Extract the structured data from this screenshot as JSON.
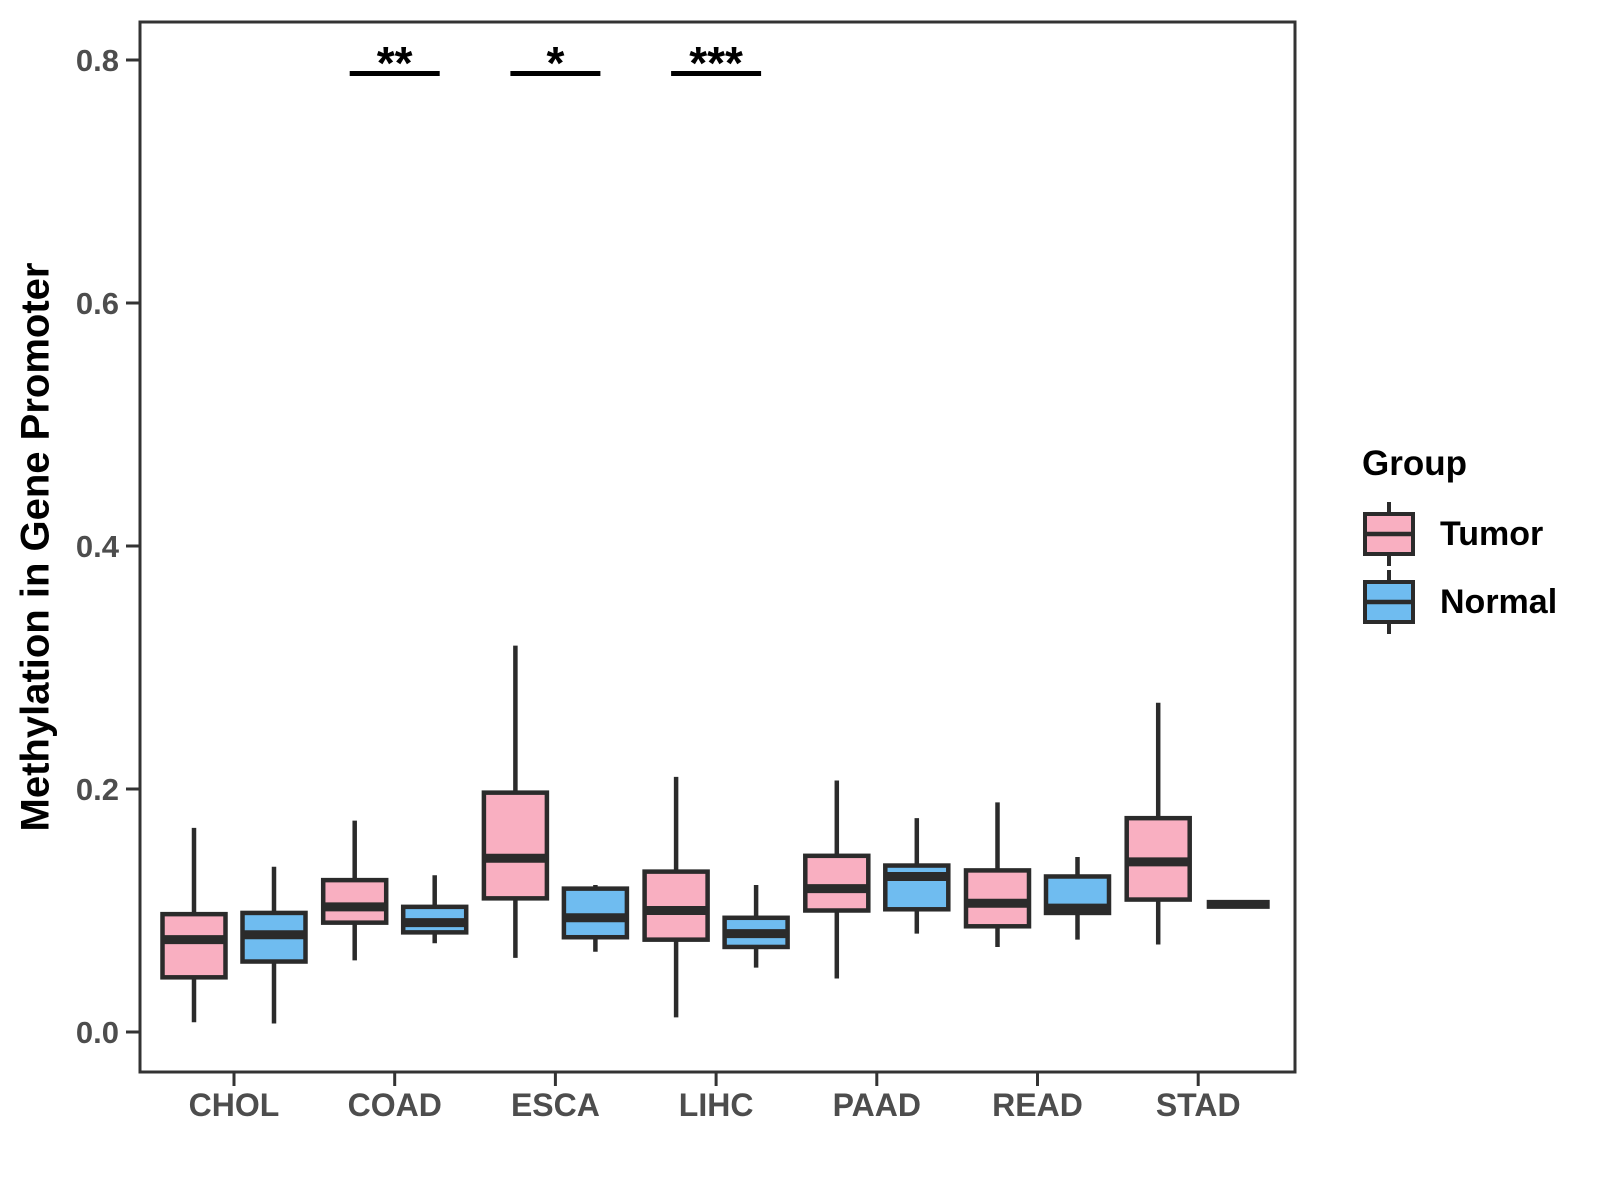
{
  "figure": {
    "y_axis_title": "Methylation in Gene Promoter"
  },
  "legend": {
    "title": "Group",
    "entries": [
      {
        "label": "Tumor",
        "color": "#F9AFC1"
      },
      {
        "label": "Normal",
        "color": "#6FBCF0"
      }
    ]
  },
  "chart_data": {
    "type": "boxplot",
    "title": "",
    "xlabel": "",
    "ylabel": "Methylation in Gene Promoter",
    "legend_title": "Group",
    "legend_position": "right",
    "grid": false,
    "ylim": [
      -0.033,
      0.831
    ],
    "y_ticks": [
      {
        "value": 0.0,
        "label": "0.0"
      },
      {
        "value": 0.2,
        "label": "0.2"
      },
      {
        "value": 0.4,
        "label": "0.4"
      },
      {
        "value": 0.6,
        "label": "0.6"
      },
      {
        "value": 0.8,
        "label": "0.8"
      }
    ],
    "categories": [
      "CHOL",
      "COAD",
      "ESCA",
      "LIHC",
      "PAAD",
      "READ",
      "STAD"
    ],
    "colors": {
      "tumor_fill": "#F9AFC1",
      "normal_fill": "#6FBCF0",
      "stroke": "#2B2B2B",
      "axis": "#333333",
      "tick_label": "#4D4D4D",
      "significance": "#000000"
    },
    "series": [
      {
        "name": "Tumor",
        "color": "#F9AFC1",
        "boxes": [
          {
            "category": "CHOL",
            "whisker_low": 0.008,
            "q1": 0.045,
            "median": 0.076,
            "q3": 0.097,
            "whisker_high": 0.168
          },
          {
            "category": "COAD",
            "whisker_low": 0.059,
            "q1": 0.09,
            "median": 0.103,
            "q3": 0.125,
            "whisker_high": 0.174
          },
          {
            "category": "ESCA",
            "whisker_low": 0.061,
            "q1": 0.11,
            "median": 0.143,
            "q3": 0.197,
            "whisker_high": 0.318
          },
          {
            "category": "LIHC",
            "whisker_low": 0.012,
            "q1": 0.076,
            "median": 0.1,
            "q3": 0.132,
            "whisker_high": 0.21
          },
          {
            "category": "PAAD",
            "whisker_low": 0.044,
            "q1": 0.1,
            "median": 0.118,
            "q3": 0.145,
            "whisker_high": 0.207
          },
          {
            "category": "READ",
            "whisker_low": 0.07,
            "q1": 0.087,
            "median": 0.106,
            "q3": 0.133,
            "whisker_high": 0.189
          },
          {
            "category": "STAD",
            "whisker_low": 0.072,
            "q1": 0.109,
            "median": 0.14,
            "q3": 0.176,
            "whisker_high": 0.271
          }
        ]
      },
      {
        "name": "Normal",
        "color": "#6FBCF0",
        "boxes": [
          {
            "category": "CHOL",
            "whisker_low": 0.007,
            "q1": 0.058,
            "median": 0.08,
            "q3": 0.098,
            "whisker_high": 0.136
          },
          {
            "category": "COAD",
            "whisker_low": 0.073,
            "q1": 0.082,
            "median": 0.09,
            "q3": 0.103,
            "whisker_high": 0.129
          },
          {
            "category": "ESCA",
            "whisker_low": 0.066,
            "q1": 0.078,
            "median": 0.094,
            "q3": 0.118,
            "whisker_high": 0.121
          },
          {
            "category": "LIHC",
            "whisker_low": 0.053,
            "q1": 0.07,
            "median": 0.081,
            "q3": 0.094,
            "whisker_high": 0.121
          },
          {
            "category": "PAAD",
            "whisker_low": 0.081,
            "q1": 0.101,
            "median": 0.128,
            "q3": 0.137,
            "whisker_high": 0.176
          },
          {
            "category": "READ",
            "whisker_low": 0.076,
            "q1": 0.098,
            "median": 0.102,
            "q3": 0.128,
            "whisker_high": 0.144
          },
          {
            "category": "STAD",
            "whisker_low": 0.105,
            "q1": 0.105,
            "median": 0.105,
            "q3": 0.105,
            "whisker_high": 0.105
          }
        ]
      }
    ],
    "significance": [
      {
        "category": "COAD",
        "label": "**"
      },
      {
        "category": "ESCA",
        "label": "*"
      },
      {
        "category": "LIHC",
        "label": "***"
      }
    ]
  }
}
